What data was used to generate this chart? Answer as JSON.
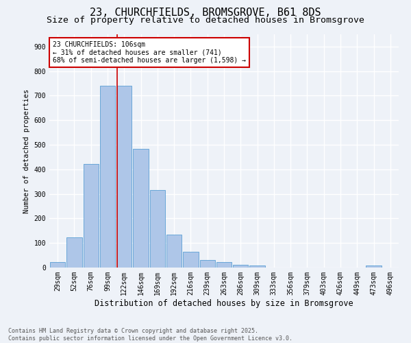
{
  "title1": "23, CHURCHFIELDS, BROMSGROVE, B61 8DS",
  "title2": "Size of property relative to detached houses in Bromsgrove",
  "xlabel": "Distribution of detached houses by size in Bromsgrove",
  "ylabel": "Number of detached properties",
  "categories": [
    "29sqm",
    "52sqm",
    "76sqm",
    "99sqm",
    "122sqm",
    "146sqm",
    "169sqm",
    "192sqm",
    "216sqm",
    "239sqm",
    "263sqm",
    "286sqm",
    "309sqm",
    "333sqm",
    "356sqm",
    "379sqm",
    "403sqm",
    "426sqm",
    "449sqm",
    "473sqm",
    "496sqm"
  ],
  "values": [
    22,
    122,
    422,
    741,
    741,
    483,
    315,
    133,
    65,
    30,
    22,
    12,
    8,
    0,
    0,
    0,
    0,
    0,
    0,
    8,
    0
  ],
  "bar_color": "#aec6e8",
  "bar_edge_color": "#5a9fd4",
  "vline_x": 3.57,
  "vline_color": "#cc0000",
  "annotation_text": "23 CHURCHFIELDS: 106sqm\n← 31% of detached houses are smaller (741)\n68% of semi-detached houses are larger (1,598) →",
  "annotation_box_color": "#ffffff",
  "annotation_box_edge": "#cc0000",
  "ylim": [
    0,
    950
  ],
  "yticks": [
    0,
    100,
    200,
    300,
    400,
    500,
    600,
    700,
    800,
    900
  ],
  "footer": "Contains HM Land Registry data © Crown copyright and database right 2025.\nContains public sector information licensed under the Open Government Licence v3.0.",
  "bg_color": "#eef2f8",
  "plot_bg_color": "#eef2f8",
  "grid_color": "#ffffff",
  "title1_fontsize": 11,
  "title2_fontsize": 9.5,
  "xlabel_fontsize": 8.5,
  "ylabel_fontsize": 7.5,
  "annotation_fontsize": 7.0,
  "footer_fontsize": 6.0,
  "tick_fontsize": 7
}
